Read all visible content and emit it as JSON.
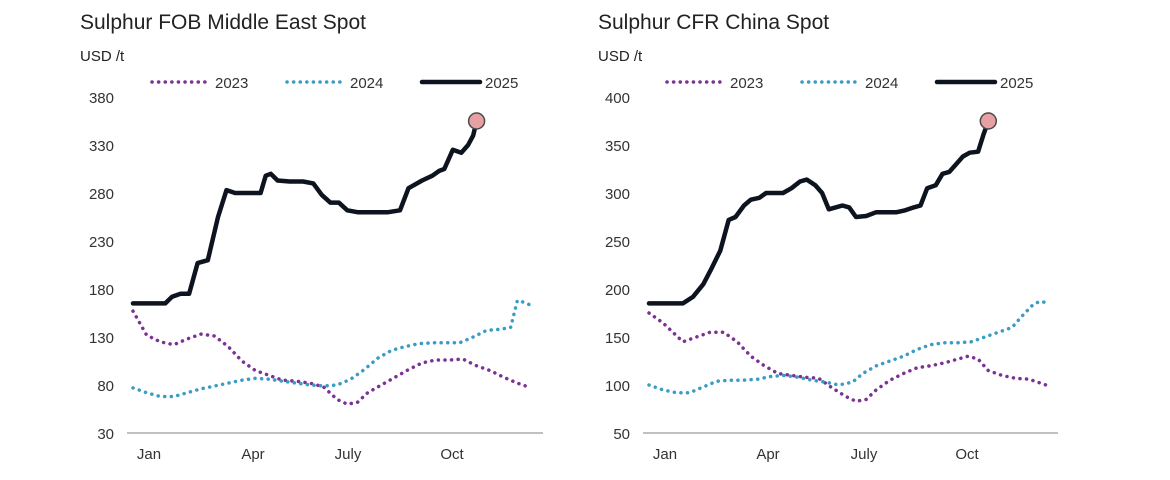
{
  "colors": {
    "s2023": "#7b3294",
    "s2024": "#3a9cc4",
    "s2025": "#0d1420",
    "marker_fill": "#e7a1a4",
    "marker_stroke": "#4a4a4a",
    "axis": "#9a9a9a"
  },
  "chart_data": [
    {
      "type": "line",
      "title": "Sulphur FOB Middle East Spot",
      "ylabel": "USD /t",
      "ylim": [
        30,
        380
      ],
      "yticks": [
        "30",
        "80",
        "130",
        "180",
        "230",
        "280",
        "330",
        "380"
      ],
      "xlim": [
        0,
        11.7
      ],
      "xtick_labels": [
        {
          "label": "Jan",
          "x": 0.15
        },
        {
          "label": "Apr",
          "x": 3.15
        },
        {
          "label": "July",
          "x": 6.15
        },
        {
          "label": "Oct",
          "x": 9.15
        }
      ],
      "legend_position": "top",
      "grid": false,
      "series": [
        {
          "name": "2023",
          "style": "dotted",
          "colorKey": "s2023",
          "points": [
            [
              0,
              157
            ],
            [
              0.4,
              132
            ],
            [
              0.8,
              125
            ],
            [
              1.2,
              122
            ],
            [
              1.6,
              128
            ],
            [
              2.0,
              133
            ],
            [
              2.4,
              131
            ],
            [
              2.8,
              120
            ],
            [
              3.2,
              105
            ],
            [
              3.6,
              95
            ],
            [
              4.0,
              90
            ],
            [
              4.4,
              85
            ],
            [
              4.8,
              84
            ],
            [
              5.2,
              82
            ],
            [
              5.6,
              78
            ],
            [
              6.0,
              65
            ],
            [
              6.3,
              60
            ],
            [
              6.6,
              62
            ],
            [
              6.9,
              72
            ],
            [
              7.3,
              80
            ],
            [
              7.7,
              88
            ],
            [
              8.1,
              96
            ],
            [
              8.5,
              103
            ],
            [
              8.9,
              106
            ],
            [
              9.3,
              106
            ],
            [
              9.7,
              107
            ],
            [
              10.1,
              100
            ],
            [
              10.5,
              95
            ],
            [
              10.9,
              88
            ],
            [
              11.3,
              82
            ],
            [
              11.7,
              77
            ]
          ]
        },
        {
          "name": "2024",
          "style": "dotted",
          "colorKey": "s2024",
          "points": [
            [
              0,
              77
            ],
            [
              0.4,
              72
            ],
            [
              0.8,
              68
            ],
            [
              1.2,
              68
            ],
            [
              1.6,
              72
            ],
            [
              2.0,
              76
            ],
            [
              2.4,
              79
            ],
            [
              2.8,
              82
            ],
            [
              3.2,
              85
            ],
            [
              3.6,
              87
            ],
            [
              4.0,
              86
            ],
            [
              4.4,
              84
            ],
            [
              4.8,
              82
            ],
            [
              5.2,
              80
            ],
            [
              5.6,
              79
            ],
            [
              6.0,
              80
            ],
            [
              6.4,
              86
            ],
            [
              6.8,
              96
            ],
            [
              7.2,
              108
            ],
            [
              7.6,
              116
            ],
            [
              8.0,
              120
            ],
            [
              8.4,
              123
            ],
            [
              8.8,
              124
            ],
            [
              9.2,
              124
            ],
            [
              9.6,
              124
            ],
            [
              10.0,
              130
            ],
            [
              10.4,
              137
            ],
            [
              10.8,
              138
            ],
            [
              11.1,
              140
            ],
            [
              11.3,
              168
            ],
            [
              11.5,
              166
            ],
            [
              11.7,
              163
            ]
          ]
        },
        {
          "name": "2025",
          "style": "solid",
          "colorKey": "s2025",
          "end_marker": true,
          "points": [
            [
              0,
              165
            ],
            [
              0.7,
              165
            ],
            [
              0.95,
              165
            ],
            [
              1.15,
              172
            ],
            [
              1.4,
              175
            ],
            [
              1.65,
              175
            ],
            [
              1.9,
              207
            ],
            [
              2.2,
              210
            ],
            [
              2.5,
              255
            ],
            [
              2.75,
              283
            ],
            [
              3.0,
              280
            ],
            [
              3.5,
              280
            ],
            [
              3.75,
              280
            ],
            [
              3.9,
              298
            ],
            [
              4.05,
              300
            ],
            [
              4.25,
              293
            ],
            [
              4.6,
              292
            ],
            [
              5.0,
              292
            ],
            [
              5.3,
              290
            ],
            [
              5.55,
              278
            ],
            [
              5.8,
              270
            ],
            [
              6.05,
              270
            ],
            [
              6.3,
              262
            ],
            [
              6.6,
              260
            ],
            [
              7.0,
              260
            ],
            [
              7.5,
              260
            ],
            [
              7.85,
              262
            ],
            [
              8.1,
              285
            ],
            [
              8.5,
              293
            ],
            [
              8.8,
              298
            ],
            [
              9.0,
              303
            ],
            [
              9.15,
              305
            ],
            [
              9.4,
              325
            ],
            [
              9.65,
              322
            ],
            [
              9.85,
              330
            ],
            [
              10.0,
              340
            ],
            [
              10.1,
              355
            ]
          ]
        }
      ]
    },
    {
      "type": "line",
      "title": "Sulphur CFR China Spot",
      "ylabel": "USD /t",
      "ylim": [
        50,
        400
      ],
      "yticks": [
        "50",
        "100",
        "150",
        "200",
        "250",
        "300",
        "350",
        "400"
      ],
      "xlim": [
        0,
        11.7
      ],
      "xtick_labels": [
        {
          "label": "Jan",
          "x": 0.15
        },
        {
          "label": "Apr",
          "x": 3.15
        },
        {
          "label": "July",
          "x": 6.15
        },
        {
          "label": "Oct",
          "x": 9.15
        }
      ],
      "legend_position": "top",
      "grid": false,
      "series": [
        {
          "name": "2023",
          "style": "dotted",
          "colorKey": "s2023",
          "points": [
            [
              0,
              175
            ],
            [
              0.4,
              165
            ],
            [
              0.7,
              155
            ],
            [
              1.0,
              145
            ],
            [
              1.4,
              150
            ],
            [
              1.8,
              155
            ],
            [
              2.2,
              155
            ],
            [
              2.6,
              145
            ],
            [
              3.0,
              130
            ],
            [
              3.4,
              120
            ],
            [
              3.8,
              112
            ],
            [
              4.2,
              110
            ],
            [
              4.6,
              108
            ],
            [
              5.0,
              107
            ],
            [
              5.4,
              97
            ],
            [
              5.8,
              88
            ],
            [
              6.1,
              83
            ],
            [
              6.4,
              85
            ],
            [
              6.7,
              95
            ],
            [
              7.1,
              105
            ],
            [
              7.5,
              112
            ],
            [
              7.9,
              118
            ],
            [
              8.3,
              120
            ],
            [
              8.7,
              123
            ],
            [
              9.1,
              127
            ],
            [
              9.4,
              130
            ],
            [
              9.7,
              127
            ],
            [
              10.0,
              115
            ],
            [
              10.4,
              110
            ],
            [
              10.8,
              107
            ],
            [
              11.2,
              106
            ],
            [
              11.7,
              100
            ]
          ]
        },
        {
          "name": "2024",
          "style": "dotted",
          "colorKey": "s2024",
          "points": [
            [
              0,
              100
            ],
            [
              0.4,
              95
            ],
            [
              0.8,
              92
            ],
            [
              1.2,
              92
            ],
            [
              1.6,
              98
            ],
            [
              2.0,
              104
            ],
            [
              2.4,
              105
            ],
            [
              2.8,
              105
            ],
            [
              3.2,
              106
            ],
            [
              3.6,
              109
            ],
            [
              4.0,
              110
            ],
            [
              4.4,
              108
            ],
            [
              4.8,
              105
            ],
            [
              5.2,
              103
            ],
            [
              5.6,
              100
            ],
            [
              6.0,
              103
            ],
            [
              6.3,
              112
            ],
            [
              6.7,
              120
            ],
            [
              7.1,
              125
            ],
            [
              7.5,
              130
            ],
            [
              7.9,
              137
            ],
            [
              8.3,
              142
            ],
            [
              8.7,
              144
            ],
            [
              9.1,
              144
            ],
            [
              9.5,
              145
            ],
            [
              9.9,
              150
            ],
            [
              10.3,
              155
            ],
            [
              10.7,
              160
            ],
            [
              11.0,
              172
            ],
            [
              11.3,
              183
            ],
            [
              11.5,
              187
            ],
            [
              11.7,
              186
            ]
          ]
        },
        {
          "name": "2025",
          "style": "solid",
          "colorKey": "s2025",
          "end_marker": true,
          "points": [
            [
              0,
              185
            ],
            [
              1.0,
              185
            ],
            [
              1.3,
              192
            ],
            [
              1.6,
              205
            ],
            [
              1.85,
              222
            ],
            [
              2.1,
              240
            ],
            [
              2.35,
              272
            ],
            [
              2.55,
              275
            ],
            [
              2.8,
              287
            ],
            [
              3.0,
              293
            ],
            [
              3.25,
              295
            ],
            [
              3.45,
              300
            ],
            [
              3.7,
              300
            ],
            [
              3.95,
              300
            ],
            [
              4.2,
              305
            ],
            [
              4.45,
              312
            ],
            [
              4.65,
              314
            ],
            [
              4.9,
              308
            ],
            [
              5.1,
              300
            ],
            [
              5.3,
              283
            ],
            [
              5.5,
              285
            ],
            [
              5.7,
              287
            ],
            [
              5.9,
              285
            ],
            [
              6.1,
              275
            ],
            [
              6.4,
              276
            ],
            [
              6.7,
              280
            ],
            [
              7.0,
              280
            ],
            [
              7.3,
              280
            ],
            [
              7.55,
              282
            ],
            [
              7.8,
              285
            ],
            [
              8.0,
              287
            ],
            [
              8.2,
              305
            ],
            [
              8.45,
              308
            ],
            [
              8.65,
              320
            ],
            [
              8.85,
              322
            ],
            [
              9.05,
              330
            ],
            [
              9.25,
              338
            ],
            [
              9.45,
              342
            ],
            [
              9.7,
              343
            ],
            [
              9.85,
              360
            ],
            [
              10.0,
              375
            ]
          ]
        }
      ]
    }
  ]
}
